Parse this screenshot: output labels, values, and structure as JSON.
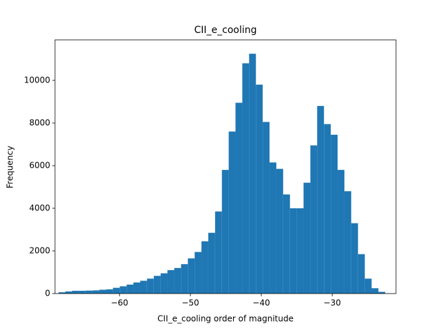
{
  "chart_data": {
    "type": "histogram",
    "title": "CII_e_cooling",
    "x_label": "CII_e_cooling order of magnitude",
    "y_label": "Frequency",
    "color": "#1f77b4",
    "bins": [
      -68.6,
      -67.64,
      -66.68,
      -65.72,
      -64.76,
      -63.8,
      -62.84,
      -61.88,
      -60.92,
      -59.96,
      -59.0,
      -58.04,
      -57.08,
      -56.12,
      -55.16,
      -54.2,
      -53.24,
      -52.28,
      -51.32,
      -50.36,
      -49.4,
      -48.44,
      -47.48,
      -46.52,
      -45.56,
      -44.6,
      -43.64,
      -42.68,
      -41.72,
      -40.76,
      -39.8,
      -38.84,
      -37.88,
      -36.92,
      -35.96,
      -35.0,
      -34.04,
      -33.08,
      -32.12,
      -31.16,
      -30.2,
      -29.24,
      -28.28,
      -27.32,
      -26.36,
      -25.4,
      -24.44,
      -23.48,
      -22.52
    ],
    "values": [
      60,
      100,
      130,
      130,
      140,
      150,
      180,
      200,
      270,
      340,
      420,
      520,
      600,
      700,
      830,
      950,
      1100,
      1200,
      1380,
      1650,
      1950,
      2450,
      2850,
      3850,
      5800,
      7600,
      8950,
      10800,
      11250,
      9800,
      8050,
      6150,
      5850,
      4650,
      4000,
      4000,
      5200,
      6950,
      8800,
      7950,
      7450,
      5800,
      4800,
      3300,
      1850,
      700,
      250,
      80
    ],
    "xlim": [
      -69.1,
      -21.0
    ],
    "ylim": [
      0,
      11900
    ],
    "xticks": [
      {
        "value": -60,
        "label": "−60"
      },
      {
        "value": -50,
        "label": "−50"
      },
      {
        "value": -40,
        "label": "−40"
      },
      {
        "value": -30,
        "label": "−30"
      }
    ],
    "yticks": [
      0,
      2000,
      4000,
      6000,
      8000,
      10000
    ]
  }
}
